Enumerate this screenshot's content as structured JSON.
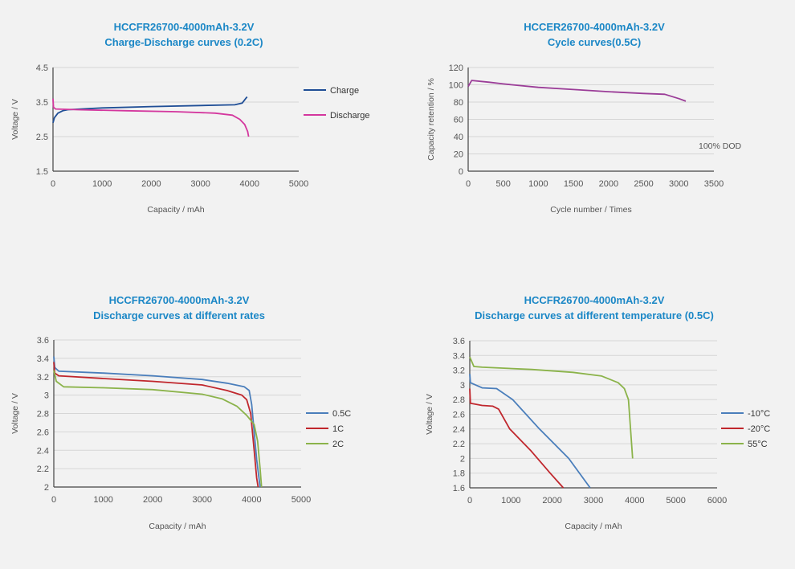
{
  "chart_data": [
    {
      "type": "line",
      "title": [
        "HCCFR26700-4000mAh-3.2V",
        "Charge-Discharge curves (0.2C)"
      ],
      "xlabel": "Capacity / mAh",
      "ylabel": "Voltage / V",
      "xlim": [
        0,
        5000
      ],
      "ylim": [
        1.5,
        4.5
      ],
      "xticks": [
        0,
        1000,
        2000,
        3000,
        4000,
        5000
      ],
      "yticks": [
        1.5,
        2.5,
        3.5,
        4.5
      ],
      "grid": true,
      "legend": "right",
      "series": [
        {
          "name": "Charge",
          "color": "#1f4e96",
          "x": [
            0,
            30,
            100,
            200,
            300,
            1000,
            2000,
            3000,
            3700,
            3850,
            3920,
            3950
          ],
          "y": [
            2.9,
            3.05,
            3.18,
            3.25,
            3.28,
            3.33,
            3.37,
            3.4,
            3.42,
            3.47,
            3.6,
            3.65
          ]
        },
        {
          "name": "Discharge",
          "color": "#d4379e",
          "x": [
            0,
            10,
            50,
            500,
            1500,
            2500,
            3300,
            3650,
            3800,
            3900,
            3960,
            3980
          ],
          "y": [
            3.6,
            3.35,
            3.3,
            3.28,
            3.25,
            3.22,
            3.18,
            3.12,
            3.0,
            2.85,
            2.65,
            2.5
          ]
        }
      ]
    },
    {
      "type": "line",
      "title": [
        "HCCER26700-4000mAh-3.2V",
        "Cycle curves(0.5C)"
      ],
      "xlabel": "Cycle number / Times",
      "ylabel": "Capacity retention / %",
      "xlim": [
        0,
        3500
      ],
      "ylim": [
        0,
        120
      ],
      "xticks": [
        0,
        500,
        1000,
        1500,
        2000,
        2500,
        3000,
        3500
      ],
      "yticks": [
        0,
        20,
        40,
        60,
        80,
        100,
        120
      ],
      "grid": true,
      "legend": "none",
      "annotation": "100% DOD",
      "series": [
        {
          "name": "Cycle",
          "color": "#9b3d98",
          "x": [
            0,
            50,
            300,
            500,
            1000,
            1500,
            2000,
            2500,
            2800,
            3000,
            3100
          ],
          "y": [
            98,
            105,
            103,
            101,
            97,
            94.5,
            92,
            90,
            89,
            84,
            81
          ]
        }
      ]
    },
    {
      "type": "line",
      "title": [
        "HCCFR26700-4000mAh-3.2V",
        "Discharge curves at different rates"
      ],
      "xlabel": "Capacity / mAh",
      "ylabel": "Voltage / V",
      "xlim": [
        0,
        5000
      ],
      "ylim": [
        2,
        3.6
      ],
      "xticks": [
        0,
        1000,
        2000,
        3000,
        4000,
        5000
      ],
      "yticks": [
        2,
        2.2,
        2.4,
        2.6,
        2.8,
        3,
        3.2,
        3.4,
        3.6
      ],
      "grid": true,
      "legend": "right",
      "series": [
        {
          "name": "0.5C",
          "color": "#4a7ebb",
          "x": [
            0,
            20,
            100,
            1000,
            2000,
            3000,
            3500,
            3850,
            3950,
            4000,
            4050,
            4100,
            4170
          ],
          "y": [
            3.42,
            3.3,
            3.26,
            3.24,
            3.21,
            3.17,
            3.13,
            3.09,
            3.05,
            2.9,
            2.6,
            2.3,
            2.0
          ]
        },
        {
          "name": "1C",
          "color": "#c0272d",
          "x": [
            0,
            20,
            100,
            1000,
            2000,
            3000,
            3500,
            3800,
            3900,
            3980,
            4050,
            4100,
            4130
          ],
          "y": [
            3.36,
            3.24,
            3.21,
            3.18,
            3.15,
            3.11,
            3.05,
            3.0,
            2.95,
            2.8,
            2.4,
            2.1,
            2.0
          ]
        },
        {
          "name": "2C",
          "color": "#8bb34a",
          "x": [
            0,
            50,
            200,
            1000,
            2000,
            3000,
            3400,
            3700,
            3900,
            4050,
            4120,
            4170,
            4200
          ],
          "y": [
            3.27,
            3.15,
            3.09,
            3.08,
            3.06,
            3.01,
            2.96,
            2.88,
            2.78,
            2.68,
            2.5,
            2.2,
            2.0
          ]
        }
      ]
    },
    {
      "type": "line",
      "title": [
        "HCCFR26700-4000mAh-3.2V",
        "Discharge curves at different temperature (0.5C)"
      ],
      "xlabel": "Capacity / mAh",
      "ylabel": "Voltage / V",
      "xlim": [
        0,
        6000
      ],
      "ylim": [
        1.6,
        3.6
      ],
      "xticks": [
        0,
        1000,
        2000,
        3000,
        4000,
        5000,
        6000
      ],
      "yticks": [
        1.6,
        1.8,
        2,
        2.2,
        2.4,
        2.6,
        2.8,
        3,
        3.2,
        3.4,
        3.6
      ],
      "grid": true,
      "legend": "right",
      "series": [
        {
          "name": "-10°C",
          "color": "#4a7ebb",
          "x": [
            0,
            15,
            300,
            650,
            1040,
            1690,
            2400,
            2920
          ],
          "y": [
            3.15,
            3.03,
            2.96,
            2.95,
            2.8,
            2.4,
            2.0,
            1.6
          ]
        },
        {
          "name": "-20°C",
          "color": "#c0272d",
          "x": [
            0,
            15,
            300,
            560,
            700,
            970,
            1490,
            1950,
            2270
          ],
          "y": [
            2.95,
            2.75,
            2.72,
            2.71,
            2.67,
            2.4,
            2.1,
            1.8,
            1.6
          ]
        },
        {
          "name": "55°C",
          "color": "#8bb34a",
          "x": [
            0,
            100,
            300,
            1500,
            2500,
            3200,
            3600,
            3750,
            3850,
            3900,
            3950
          ],
          "y": [
            3.38,
            3.25,
            3.24,
            3.21,
            3.17,
            3.12,
            3.03,
            2.95,
            2.8,
            2.4,
            2.0
          ]
        }
      ]
    }
  ]
}
